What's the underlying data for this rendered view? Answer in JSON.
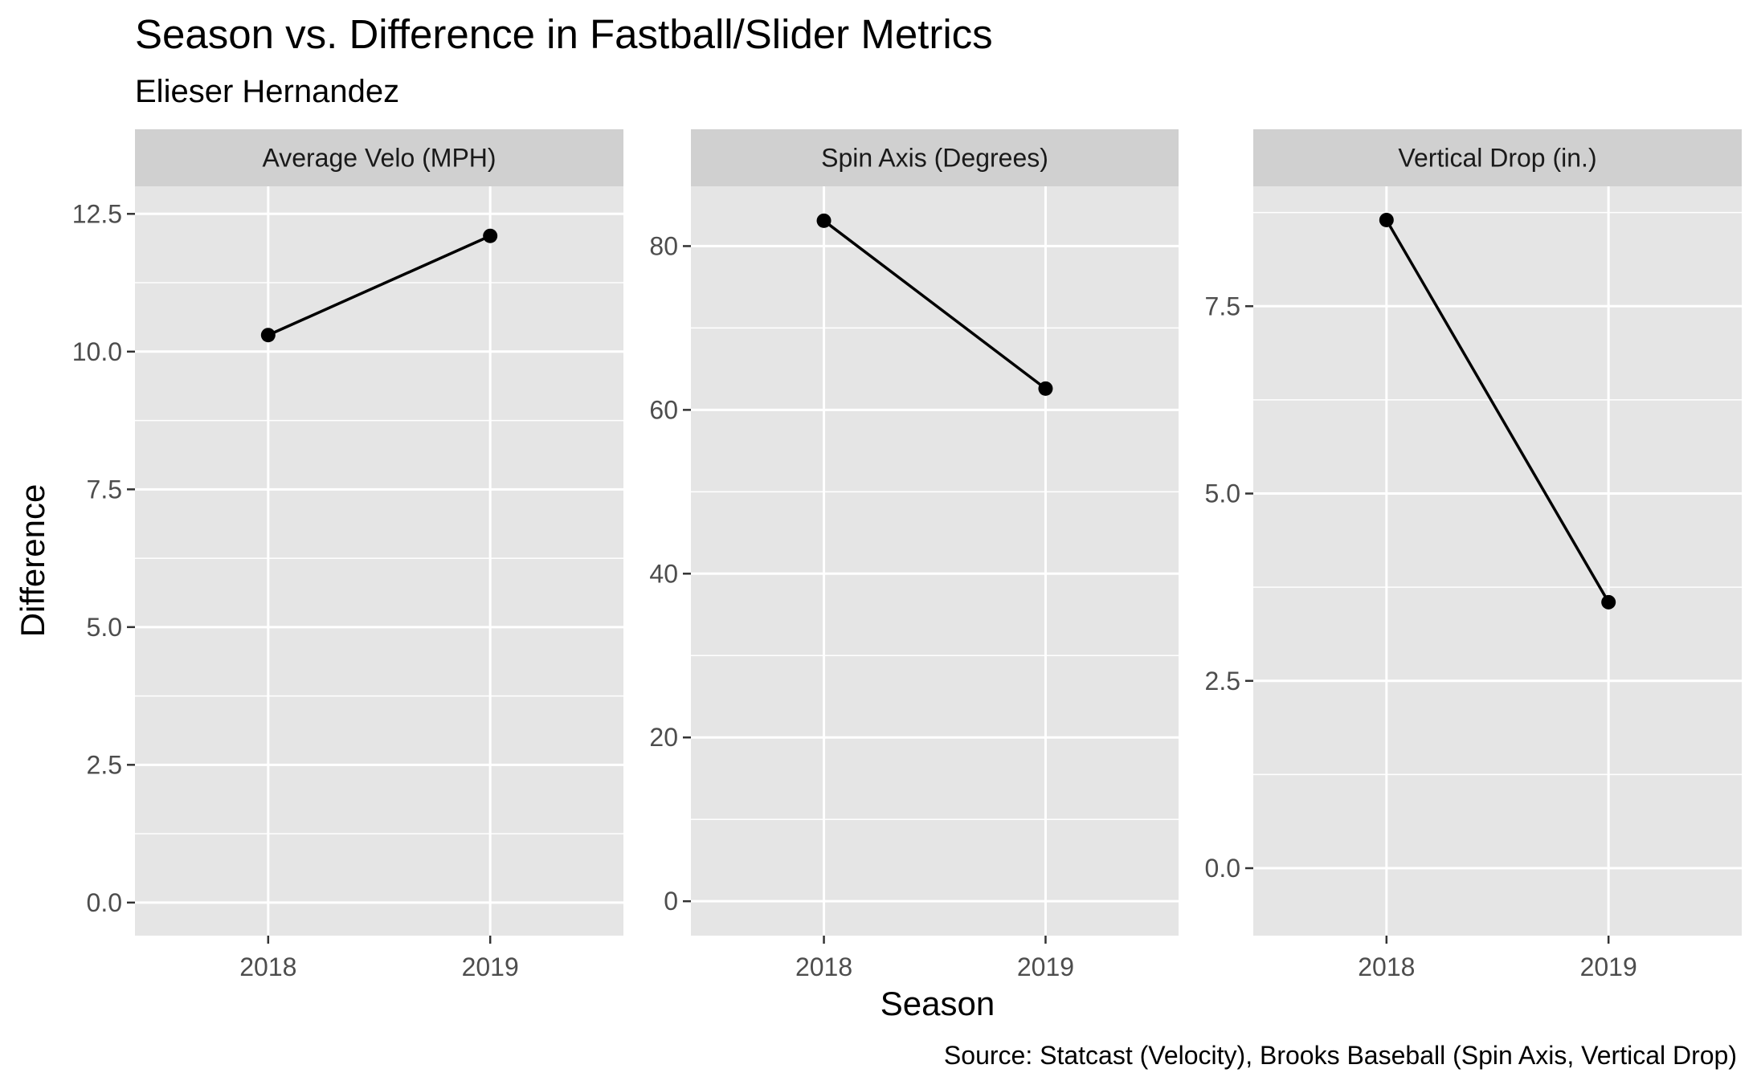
{
  "title": "Season vs. Difference in Fastball/Slider Metrics",
  "subtitle": "Elieser Hernandez",
  "xlabel": "Season",
  "ylabel": "Difference",
  "caption": "Source: Statcast (Velocity), Brooks Baseball (Spin Axis, Vertical Drop)",
  "colors": {
    "panel_bg": "#e5e5e5",
    "strip_bg": "#d0d0d0",
    "grid": "#ffffff",
    "line": "#000000",
    "tick": "#333333"
  },
  "chart_data": [
    {
      "type": "line",
      "facet": "Average Velo (MPH)",
      "x": [
        "2018",
        "2019"
      ],
      "y": [
        10.3,
        12.1
      ],
      "ylim": [
        -0.6,
        13.0
      ],
      "yticks": [
        0.0,
        2.5,
        5.0,
        7.5,
        10.0,
        12.5
      ],
      "ytick_labels": [
        "0.0",
        "2.5",
        "5.0",
        "7.5",
        "10.0",
        "12.5"
      ],
      "grid": true
    },
    {
      "type": "line",
      "facet": "Spin Axis (Degrees)",
      "x": [
        "2018",
        "2019"
      ],
      "y": [
        83.1,
        62.6
      ],
      "ylim": [
        -4.2,
        87.3
      ],
      "yticks": [
        0,
        20,
        40,
        60,
        80
      ],
      "ytick_labels": [
        "0",
        "20",
        "40",
        "60",
        "80"
      ],
      "grid": true
    },
    {
      "type": "line",
      "facet": "Vertical Drop (in.)",
      "x": [
        "2018",
        "2019"
      ],
      "y": [
        8.65,
        3.55
      ],
      "ylim": [
        -0.9,
        9.1
      ],
      "yticks": [
        0.0,
        2.5,
        5.0,
        7.5
      ],
      "ytick_labels": [
        "0.0",
        "2.5",
        "5.0",
        "7.5"
      ],
      "grid": true
    }
  ]
}
